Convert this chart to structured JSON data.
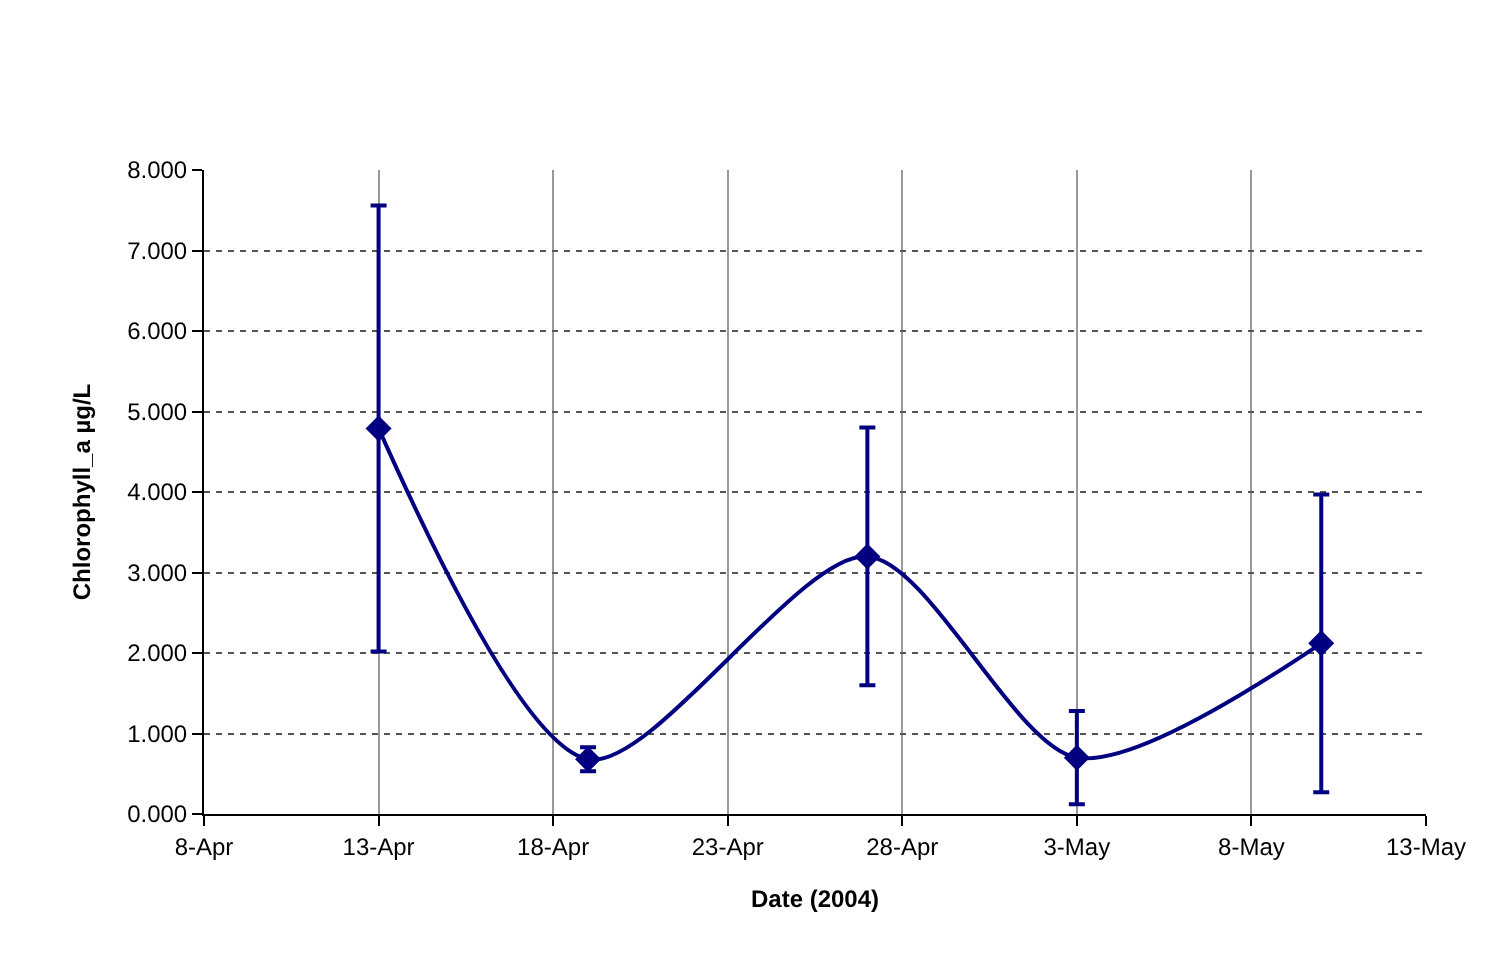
{
  "chart_data": {
    "type": "line",
    "xlabel": "Date (2004)",
    "ylabel": "Chlorophyll_a µg/L",
    "x": [
      "2004-04-13",
      "2004-04-19",
      "2004-04-27",
      "2004-05-03",
      "2004-05-10"
    ],
    "series": [
      {
        "color": "#000080",
        "values": [
          4.79,
          0.68,
          3.2,
          0.7,
          2.12
        ],
        "errors": [
          2.77,
          0.15,
          1.6,
          0.58,
          1.85
        ]
      }
    ],
    "xlim": [
      "2004-04-08",
      "2004-05-13"
    ],
    "xticks": [
      {
        "value": "2004-04-08",
        "label": "8-Apr"
      },
      {
        "value": "2004-04-13",
        "label": "13-Apr"
      },
      {
        "value": "2004-04-18",
        "label": "18-Apr"
      },
      {
        "value": "2004-04-23",
        "label": "23-Apr"
      },
      {
        "value": "2004-04-28",
        "label": "28-Apr"
      },
      {
        "value": "2004-05-03",
        "label": "3-May"
      },
      {
        "value": "2004-05-08",
        "label": "8-May"
      },
      {
        "value": "2004-05-13",
        "label": "13-May"
      }
    ],
    "ylim": [
      0,
      8
    ],
    "yticks": [
      {
        "value": 0,
        "label": "0.000"
      },
      {
        "value": 1,
        "label": "1.000"
      },
      {
        "value": 2,
        "label": "2.000"
      },
      {
        "value": 3,
        "label": "3.000"
      },
      {
        "value": 4,
        "label": "4.000"
      },
      {
        "value": 5,
        "label": "5.000"
      },
      {
        "value": 6,
        "label": "6.000"
      },
      {
        "value": 7,
        "label": "7.000"
      },
      {
        "value": 8,
        "label": "8.000"
      }
    ],
    "grid": true,
    "marker": "diamond",
    "line_style": "solid"
  }
}
